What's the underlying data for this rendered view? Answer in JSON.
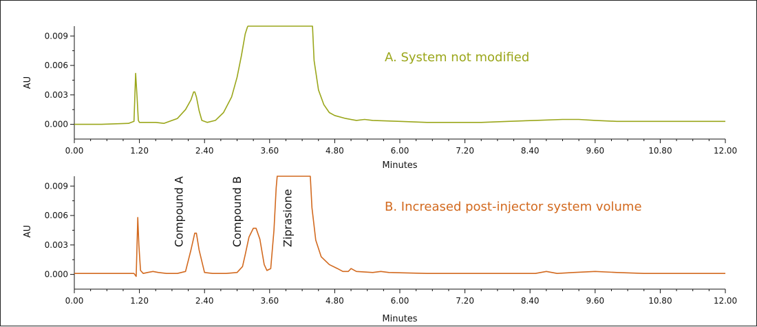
{
  "chart_data": [
    {
      "type": "line",
      "panel": "A",
      "color": "#9aa61a",
      "annotation": "A. System not modified",
      "xlabel": "Minutes",
      "ylabel": "AU",
      "xlim": [
        0.0,
        12.0
      ],
      "ylim": [
        -0.0015,
        0.01
      ],
      "x_ticks": [
        "0.00",
        "1.20",
        "2.40",
        "3.60",
        "4.80",
        "6.00",
        "7.20",
        "8.40",
        "9.60",
        "10.80",
        "12.00"
      ],
      "y_ticks": [
        "0.000",
        "0.003",
        "0.006",
        "0.009"
      ],
      "series": [
        {
          "x": [
            0.0,
            0.5,
            1.0,
            1.1,
            1.13,
            1.16,
            1.18,
            1.2,
            1.25,
            1.3,
            1.5,
            1.65,
            1.9,
            2.05,
            2.15,
            2.2,
            2.22,
            2.25,
            2.3,
            2.35,
            2.45,
            2.6,
            2.75,
            2.9,
            3.0,
            3.08,
            3.15,
            3.19,
            3.2,
            4.39,
            4.42,
            4.5,
            4.6,
            4.7,
            4.8,
            5.0,
            5.2,
            5.35,
            5.5,
            6.0,
            6.5,
            7.0,
            7.5,
            8.0,
            8.5,
            9.0,
            9.3,
            9.6,
            10.0,
            10.5,
            11.0,
            11.5,
            12.0
          ],
          "y": [
            0.0,
            0.0,
            0.0001,
            0.0003,
            0.0052,
            0.0025,
            0.0004,
            0.0002,
            0.0002,
            0.0002,
            0.0002,
            0.0001,
            0.0006,
            0.0015,
            0.0025,
            0.0033,
            0.0033,
            0.0028,
            0.0014,
            0.0004,
            0.0002,
            0.0004,
            0.0012,
            0.0028,
            0.0048,
            0.007,
            0.0092,
            0.0099,
            0.01,
            0.01,
            0.0065,
            0.0035,
            0.002,
            0.0012,
            0.0009,
            0.0006,
            0.0004,
            0.0005,
            0.0004,
            0.0003,
            0.0002,
            0.0002,
            0.0002,
            0.0003,
            0.0004,
            0.0005,
            0.0005,
            0.0004,
            0.0003,
            0.0003,
            0.0003,
            0.0003,
            0.0003
          ]
        }
      ]
    },
    {
      "type": "line",
      "panel": "B",
      "color": "#d2691e",
      "annotation": "B. Increased post-injector system volume",
      "xlabel": "Minutes",
      "ylabel": "AU",
      "xlim": [
        0.0,
        12.0
      ],
      "ylim": [
        -0.0015,
        0.01
      ],
      "x_ticks": [
        "0.00",
        "1.20",
        "2.40",
        "3.60",
        "4.80",
        "6.00",
        "7.20",
        "8.40",
        "9.60",
        "10.80",
        "12.00"
      ],
      "y_ticks": [
        "0.000",
        "0.003",
        "0.006",
        "0.009"
      ],
      "peak_labels": [
        {
          "text": "Compound A",
          "x": 2.0
        },
        {
          "text": "Compound B",
          "x": 3.07
        },
        {
          "text": "Ziprasione",
          "x": 4.0
        }
      ],
      "series": [
        {
          "x": [
            0.0,
            0.5,
            1.0,
            1.1,
            1.14,
            1.17,
            1.19,
            1.22,
            1.27,
            1.35,
            1.45,
            1.55,
            1.7,
            1.9,
            2.05,
            2.15,
            2.22,
            2.25,
            2.3,
            2.4,
            2.55,
            2.8,
            3.0,
            3.1,
            3.15,
            3.22,
            3.3,
            3.35,
            3.42,
            3.5,
            3.55,
            3.62,
            3.68,
            3.72,
            3.74,
            4.35,
            4.38,
            4.45,
            4.55,
            4.7,
            4.85,
            4.95,
            5.05,
            5.1,
            5.2,
            5.5,
            5.65,
            5.8,
            6.5,
            7.5,
            8.2,
            8.5,
            8.7,
            8.9,
            9.2,
            9.6,
            10.0,
            10.5,
            11.0,
            12.0
          ],
          "y": [
            0.0001,
            0.0001,
            0.0001,
            0.0001,
            -0.0002,
            0.0058,
            0.003,
            0.0004,
            0.0001,
            0.0002,
            0.0003,
            0.0002,
            0.0001,
            0.0001,
            0.0003,
            0.0025,
            0.0042,
            0.0042,
            0.0025,
            0.0002,
            0.0001,
            0.0001,
            0.0002,
            0.0008,
            0.002,
            0.0038,
            0.0047,
            0.0047,
            0.0036,
            0.001,
            0.0004,
            0.0006,
            0.0045,
            0.0088,
            0.01,
            0.01,
            0.0068,
            0.0035,
            0.0018,
            0.001,
            0.0006,
            0.0003,
            0.0003,
            0.0006,
            0.0003,
            0.0002,
            0.0003,
            0.0002,
            0.0001,
            0.0001,
            0.0001,
            0.0001,
            0.0003,
            0.0001,
            0.0002,
            0.0003,
            0.0002,
            0.0001,
            0.0001,
            0.0001
          ]
        }
      ]
    }
  ]
}
